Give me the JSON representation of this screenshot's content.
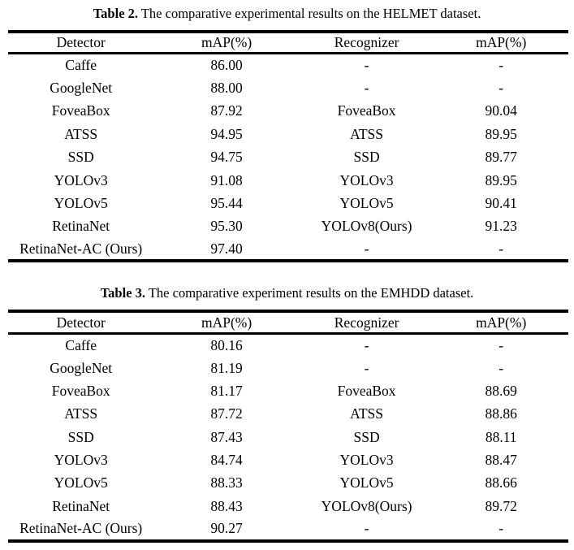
{
  "page": {
    "background": "#ffffff",
    "text_color": "#000000",
    "rule_color": "#000000"
  },
  "table2": {
    "caption_label": "Table 2.",
    "caption_text": " The comparative experimental results on the HELMET dataset.",
    "headers": {
      "detector": "Detector",
      "detector_map": "mAP(%)",
      "recognizer": "Recognizer",
      "recognizer_map": "mAP(%)"
    },
    "rows": [
      {
        "detector": "Caffe",
        "detector_map": "86.00",
        "recognizer": "-",
        "recognizer_map": "-"
      },
      {
        "detector": "GoogleNet",
        "detector_map": "88.00",
        "recognizer": "-",
        "recognizer_map": "-"
      },
      {
        "detector": "FoveaBox",
        "detector_map": "87.92",
        "recognizer": "FoveaBox",
        "recognizer_map": "90.04"
      },
      {
        "detector": "ATSS",
        "detector_map": "94.95",
        "recognizer": "ATSS",
        "recognizer_map": "89.95"
      },
      {
        "detector": "SSD",
        "detector_map": "94.75",
        "recognizer": "SSD",
        "recognizer_map": "89.77"
      },
      {
        "detector": "YOLOv3",
        "detector_map": "91.08",
        "recognizer": "YOLOv3",
        "recognizer_map": "89.95"
      },
      {
        "detector": "YOLOv5",
        "detector_map": "95.44",
        "recognizer": "YOLOv5",
        "recognizer_map": "90.41"
      },
      {
        "detector": "RetinaNet",
        "detector_map": "95.30",
        "recognizer": "YOLOv8(Ours)",
        "recognizer_map": "91.23"
      },
      {
        "detector": "RetinaNet-AC (Ours)",
        "detector_map": "97.40",
        "recognizer": "-",
        "recognizer_map": "-"
      }
    ]
  },
  "table3": {
    "caption_label": "Table 3.",
    "caption_text": " The comparative experiment results on the EMHDD dataset.",
    "headers": {
      "detector": "Detector",
      "detector_map": "mAP(%)",
      "recognizer": "Recognizer",
      "recognizer_map": "mAP(%)"
    },
    "rows": [
      {
        "detector": "Caffe",
        "detector_map": "80.16",
        "recognizer": "-",
        "recognizer_map": "-"
      },
      {
        "detector": "GoogleNet",
        "detector_map": "81.19",
        "recognizer": "-",
        "recognizer_map": "-"
      },
      {
        "detector": "FoveaBox",
        "detector_map": "81.17",
        "recognizer": "FoveaBox",
        "recognizer_map": "88.69"
      },
      {
        "detector": "ATSS",
        "detector_map": "87.72",
        "recognizer": "ATSS",
        "recognizer_map": "88.86"
      },
      {
        "detector": "SSD",
        "detector_map": "87.43",
        "recognizer": "SSD",
        "recognizer_map": "88.11"
      },
      {
        "detector": "YOLOv3",
        "detector_map": "84.74",
        "recognizer": "YOLOv3",
        "recognizer_map": "88.47"
      },
      {
        "detector": "YOLOv5",
        "detector_map": "88.33",
        "recognizer": "YOLOv5",
        "recognizer_map": "88.66"
      },
      {
        "detector": "RetinaNet",
        "detector_map": "88.43",
        "recognizer": "YOLOv8(Ours)",
        "recognizer_map": "89.72"
      },
      {
        "detector": "RetinaNet-AC (Ours)",
        "detector_map": "90.27",
        "recognizer": "-",
        "recognizer_map": "-"
      }
    ]
  }
}
